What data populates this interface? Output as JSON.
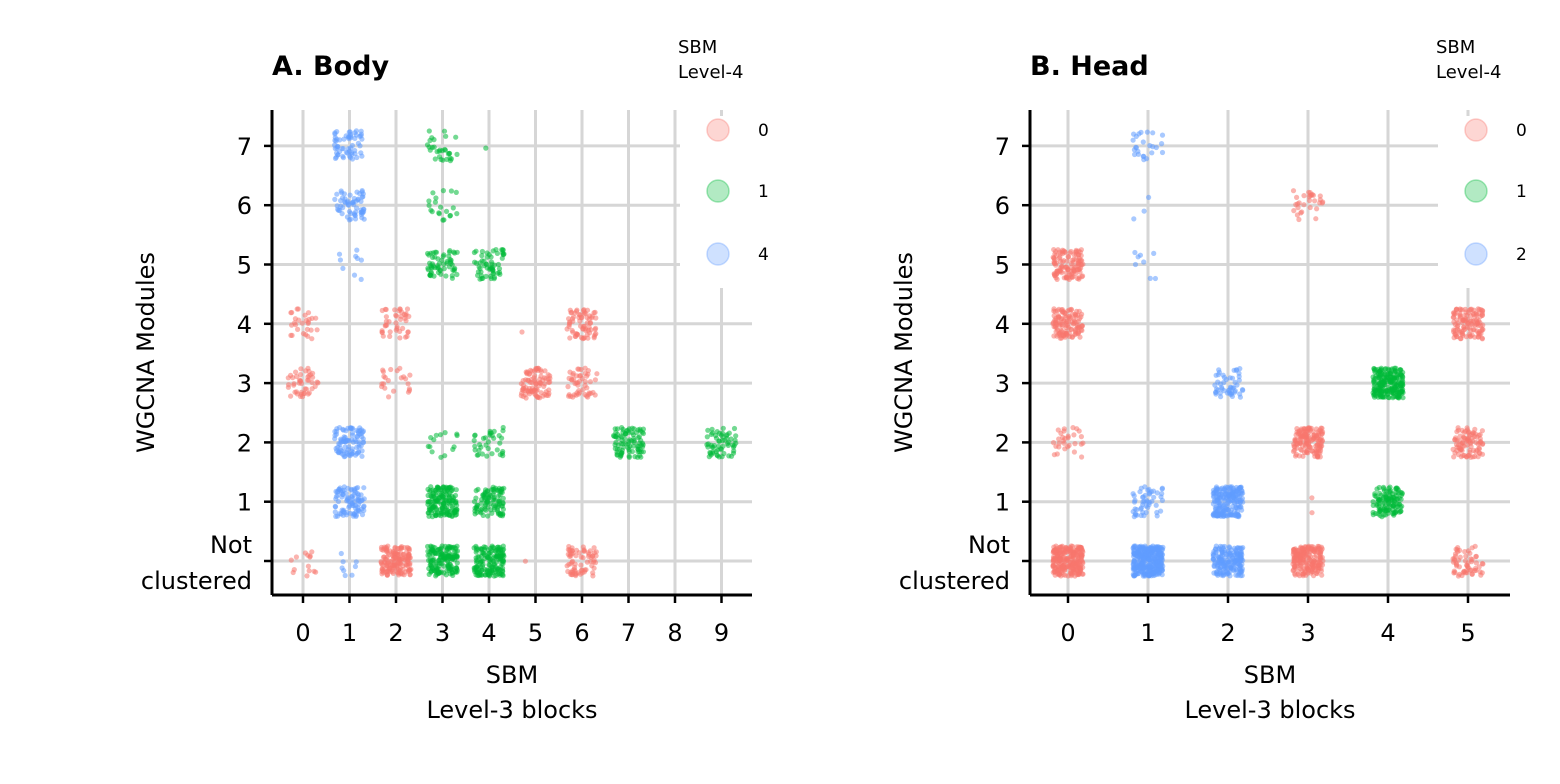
{
  "colors": {
    "0": "#F8766D",
    "1": "#00BA38",
    "2": "#619CFF",
    "4": "#619CFF"
  },
  "chart_data": [
    {
      "type": "scatter",
      "subtype": "jitter-strip",
      "title": "A. Body",
      "xlabel": [
        "SBM",
        "Level-3 blocks"
      ],
      "ylabel": "WGCNA Modules",
      "x_categories": [
        "0",
        "1",
        "2",
        "3",
        "4",
        "5",
        "6",
        "7",
        "8",
        "9"
      ],
      "y_categories": [
        "Not clustered",
        "1",
        "2",
        "3",
        "4",
        "5",
        "6",
        "7"
      ],
      "y_tick_lines": [
        "Not",
        "clustered"
      ],
      "grid": true,
      "legend": {
        "title": [
          "SBM",
          "Level-4"
        ],
        "position": "top-right",
        "entries": [
          "0",
          "1",
          "4"
        ]
      },
      "clusters": [
        {
          "x": "0",
          "y": "Not clustered",
          "group": "0",
          "n": 14
        },
        {
          "x": "0",
          "y": "3",
          "group": "0",
          "n": 45
        },
        {
          "x": "0",
          "y": "4",
          "group": "0",
          "n": 28
        },
        {
          "x": "1",
          "y": "Not clustered",
          "group": "4",
          "n": 8
        },
        {
          "x": "1",
          "y": "1",
          "group": "4",
          "n": 90
        },
        {
          "x": "1",
          "y": "2",
          "group": "4",
          "n": 90
        },
        {
          "x": "1",
          "y": "5",
          "group": "4",
          "n": 9
        },
        {
          "x": "1",
          "y": "6",
          "group": "4",
          "n": 60
        },
        {
          "x": "1",
          "y": "7",
          "group": "4",
          "n": 60
        },
        {
          "x": "2",
          "y": "Not clustered",
          "group": "0",
          "n": 160
        },
        {
          "x": "2",
          "y": "3",
          "group": "0",
          "n": 22
        },
        {
          "x": "2",
          "y": "4",
          "group": "0",
          "n": 42
        },
        {
          "x": "3",
          "y": "Not clustered",
          "group": "1",
          "n": 160
        },
        {
          "x": "3",
          "y": "1",
          "group": "1",
          "n": 160
        },
        {
          "x": "3",
          "y": "2",
          "group": "1",
          "n": 14
        },
        {
          "x": "3",
          "y": "5",
          "group": "1",
          "n": 60
        },
        {
          "x": "3",
          "y": "6",
          "group": "1",
          "n": 20
        },
        {
          "x": "3",
          "y": "7",
          "group": "1",
          "n": 30
        },
        {
          "x": "4",
          "y": "Not clustered",
          "group": "1",
          "n": 160
        },
        {
          "x": "4",
          "y": "1",
          "group": "1",
          "n": 100
        },
        {
          "x": "4",
          "y": "2",
          "group": "1",
          "n": 35
        },
        {
          "x": "4",
          "y": "5",
          "group": "1",
          "n": 60
        },
        {
          "x": "4",
          "y": "7",
          "group": "1",
          "n": 1
        },
        {
          "x": "5",
          "y": "Not clustered",
          "group": "0",
          "n": 1
        },
        {
          "x": "5",
          "y": "3",
          "group": "0",
          "n": 90
        },
        {
          "x": "5",
          "y": "4",
          "group": "0",
          "n": 1
        },
        {
          "x": "6",
          "y": "Not clustered",
          "group": "0",
          "n": 70
        },
        {
          "x": "6",
          "y": "3",
          "group": "0",
          "n": 50
        },
        {
          "x": "6",
          "y": "4",
          "group": "0",
          "n": 70
        },
        {
          "x": "7",
          "y": "2",
          "group": "1",
          "n": 90
        },
        {
          "x": "9",
          "y": "2",
          "group": "1",
          "n": 60
        }
      ]
    },
    {
      "type": "scatter",
      "subtype": "jitter-strip",
      "title": "B. Head",
      "xlabel": [
        "SBM",
        "Level-3 blocks"
      ],
      "ylabel": "WGCNA Modules",
      "x_categories": [
        "0",
        "1",
        "2",
        "3",
        "4",
        "5"
      ],
      "y_categories": [
        "Not clustered",
        "1",
        "2",
        "3",
        "4",
        "5",
        "6",
        "7"
      ],
      "y_tick_lines": [
        "Not",
        "clustered"
      ],
      "grid": true,
      "legend": {
        "title": [
          "SBM",
          "Level-4"
        ],
        "position": "top-right",
        "entries": [
          "0",
          "1",
          "2"
        ]
      },
      "clusters": [
        {
          "x": "0",
          "y": "Not clustered",
          "group": "0",
          "n": 260
        },
        {
          "x": "0",
          "y": "2",
          "group": "0",
          "n": 30
        },
        {
          "x": "0",
          "y": "4",
          "group": "0",
          "n": 120
        },
        {
          "x": "0",
          "y": "5",
          "group": "0",
          "n": 120
        },
        {
          "x": "1",
          "y": "Not clustered",
          "group": "2",
          "n": 320
        },
        {
          "x": "1",
          "y": "1",
          "group": "2",
          "n": 50
        },
        {
          "x": "1",
          "y": "5",
          "group": "2",
          "n": 8
        },
        {
          "x": "1",
          "y": "6",
          "group": "2",
          "n": 3
        },
        {
          "x": "1",
          "y": "7",
          "group": "2",
          "n": 25
        },
        {
          "x": "2",
          "y": "Not clustered",
          "group": "2",
          "n": 180
        },
        {
          "x": "2",
          "y": "1",
          "group": "2",
          "n": 200
        },
        {
          "x": "2",
          "y": "3",
          "group": "2",
          "n": 50
        },
        {
          "x": "3",
          "y": "Not clustered",
          "group": "0",
          "n": 200
        },
        {
          "x": "3",
          "y": "1",
          "group": "0",
          "n": 2
        },
        {
          "x": "3",
          "y": "2",
          "group": "0",
          "n": 140
        },
        {
          "x": "3",
          "y": "6",
          "group": "0",
          "n": 30
        },
        {
          "x": "4",
          "y": "1",
          "group": "1",
          "n": 120
        },
        {
          "x": "4",
          "y": "3",
          "group": "1",
          "n": 220
        },
        {
          "x": "5",
          "y": "Not clustered",
          "group": "0",
          "n": 60
        },
        {
          "x": "5",
          "y": "2",
          "group": "0",
          "n": 90
        },
        {
          "x": "5",
          "y": "4",
          "group": "0",
          "n": 120
        }
      ]
    }
  ]
}
